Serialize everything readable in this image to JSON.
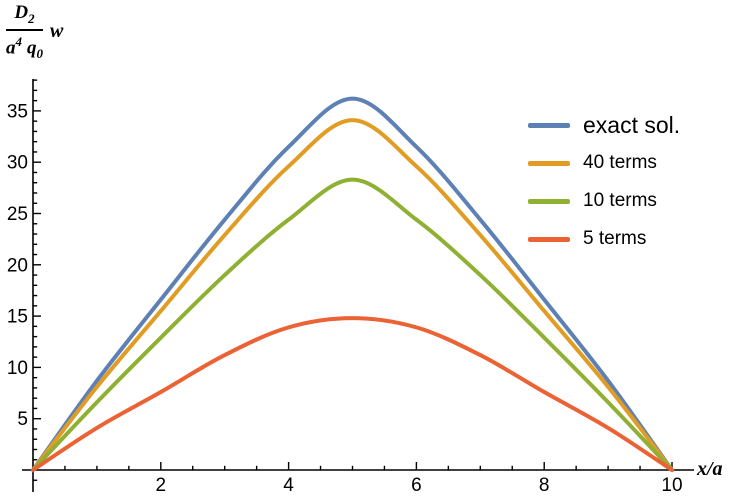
{
  "figure": {
    "background": "#ffffff"
  },
  "y_label": {
    "num_base": "D",
    "num_sub": "2",
    "den_a": "a",
    "den_a_exp": "4",
    "den_q": "q",
    "den_q_sub": "0",
    "factor": "w"
  },
  "chart_data": {
    "type": "line",
    "title": "",
    "xlabel": "x/a",
    "ylabel": "D2 w / (a^4 q0)",
    "x": [
      0,
      1,
      2,
      3,
      4,
      5,
      6,
      7,
      8,
      9,
      10
    ],
    "series": [
      {
        "name": "exact sol.",
        "color": "#5E81B5",
        "values": [
          0,
          8.7,
          16.6,
          24.4,
          31.5,
          36.2,
          31.5,
          24.4,
          16.6,
          8.7,
          0
        ]
      },
      {
        "name": "40 terms",
        "color": "#E19C24",
        "values": [
          0,
          8.1,
          15.5,
          22.9,
          29.6,
          34.1,
          29.6,
          22.9,
          15.5,
          8.1,
          0
        ]
      },
      {
        "name": "10 terms",
        "color": "#8FB032",
        "values": [
          0,
          6.6,
          12.9,
          19.0,
          24.4,
          28.3,
          24.4,
          19.0,
          12.9,
          6.6,
          0
        ]
      },
      {
        "name": "5 terms",
        "color": "#EB6235",
        "values": [
          0,
          4.1,
          7.6,
          11.2,
          13.9,
          14.8,
          13.9,
          11.2,
          7.6,
          4.1,
          0
        ]
      }
    ],
    "xlim": [
      0,
      10
    ],
    "ylim": [
      0,
      38
    ],
    "x_ticks": [
      2,
      4,
      6,
      8,
      10
    ],
    "y_ticks": [
      5,
      10,
      15,
      20,
      25,
      30,
      35
    ],
    "x_minor_tick_step": 0.5,
    "y_minor_tick_step": 1,
    "grid": false,
    "legend_position": "upper right",
    "axis_color": "#000000",
    "tick_label_color": "#000000"
  }
}
